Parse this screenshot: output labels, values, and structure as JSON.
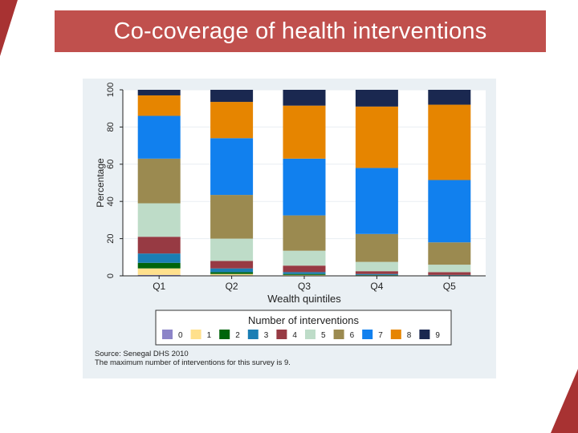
{
  "slide": {
    "title": "Co-coverage of health interventions",
    "accent_color": "#c0504d"
  },
  "chart_data": {
    "type": "bar",
    "stacked": true,
    "title": "",
    "xlabel": "Wealth quintiles",
    "ylabel": "Percentage",
    "ylim": [
      0,
      100
    ],
    "yticks": [
      0,
      20,
      40,
      60,
      80,
      100
    ],
    "categories": [
      "Q1",
      "Q2",
      "Q3",
      "Q4",
      "Q5"
    ],
    "legend_title": "Number of interventions",
    "legend_position": "bottom",
    "series": [
      {
        "name": "0",
        "color": "#8c84c8",
        "values": [
          0.5,
          0.3,
          0.2,
          0.1,
          0.1
        ]
      },
      {
        "name": "1",
        "color": "#ffe08c",
        "values": [
          3.5,
          0.7,
          0.3,
          0.2,
          0.1
        ]
      },
      {
        "name": "2",
        "color": "#00640a",
        "values": [
          3.0,
          1.0,
          0.5,
          0.2,
          0.1
        ]
      },
      {
        "name": "3",
        "color": "#1a7eb4",
        "values": [
          5.0,
          2.0,
          1.0,
          0.5,
          0.2
        ]
      },
      {
        "name": "4",
        "color": "#973a43",
        "values": [
          9.0,
          4.0,
          3.5,
          1.5,
          1.5
        ]
      },
      {
        "name": "5",
        "color": "#bedcc8",
        "values": [
          18.0,
          12.0,
          8.0,
          5.0,
          4.0
        ]
      },
      {
        "name": "6",
        "color": "#9b8a50",
        "values": [
          24.0,
          23.5,
          19.0,
          15.0,
          12.0
        ]
      },
      {
        "name": "7",
        "color": "#1180ee",
        "values": [
          23.0,
          30.5,
          30.5,
          35.5,
          33.5
        ]
      },
      {
        "name": "8",
        "color": "#e68500",
        "values": [
          11.0,
          19.5,
          28.5,
          33.0,
          40.5
        ]
      },
      {
        "name": "9",
        "color": "#1a2850",
        "values": [
          3.0,
          6.5,
          8.5,
          9.0,
          8.0
        ]
      }
    ],
    "source_note": "Source: Senegal DHS 2010",
    "footnote": "The maximum number of interventions for this survey is 9."
  }
}
